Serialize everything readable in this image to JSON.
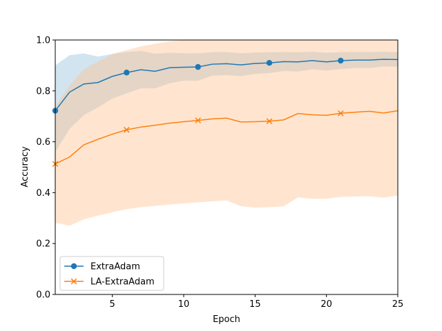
{
  "chart_data": {
    "type": "line",
    "xlabel": "Epoch",
    "ylabel": "Accuracy",
    "xlim": [
      1,
      25
    ],
    "ylim": [
      0.0,
      1.0
    ],
    "xticks": [
      5,
      10,
      15,
      20,
      25
    ],
    "yticks": [
      0.0,
      0.2,
      0.4,
      0.6,
      0.8,
      1.0
    ],
    "xtick_labels": [
      "5",
      "10",
      "15",
      "20",
      "25"
    ],
    "ytick_labels": [
      "0.0",
      "0.2",
      "0.4",
      "0.6",
      "0.8",
      "1.0"
    ],
    "grid": false,
    "legend_position": "lower-left",
    "x": [
      1,
      2,
      3,
      4,
      5,
      6,
      7,
      8,
      9,
      10,
      11,
      12,
      13,
      14,
      15,
      16,
      17,
      18,
      19,
      20,
      21,
      22,
      23,
      24,
      25
    ],
    "series": [
      {
        "name": "ExtraAdam",
        "color": "#1f77b4",
        "band_color": "#1f77b4",
        "marker": "circle",
        "marker_every": [
          1,
          6,
          11,
          16,
          21
        ],
        "values": [
          0.722,
          0.795,
          0.827,
          0.833,
          0.857,
          0.872,
          0.883,
          0.877,
          0.891,
          0.893,
          0.894,
          0.905,
          0.907,
          0.902,
          0.908,
          0.91,
          0.915,
          0.914,
          0.919,
          0.914,
          0.919,
          0.921,
          0.921,
          0.924,
          0.923
        ],
        "upper": [
          0.9,
          0.94,
          0.947,
          0.935,
          0.945,
          0.953,
          0.957,
          0.946,
          0.95,
          0.948,
          0.948,
          0.952,
          0.953,
          0.948,
          0.951,
          0.952,
          0.953,
          0.952,
          0.954,
          0.95,
          0.952,
          0.953,
          0.953,
          0.954,
          0.952
        ],
        "lower": [
          0.56,
          0.65,
          0.705,
          0.735,
          0.77,
          0.79,
          0.81,
          0.81,
          0.83,
          0.84,
          0.84,
          0.86,
          0.862,
          0.858,
          0.867,
          0.87,
          0.878,
          0.876,
          0.885,
          0.88,
          0.886,
          0.89,
          0.89,
          0.896,
          0.895
        ]
      },
      {
        "name": "LA-ExtraAdam",
        "color": "#ff7f0e",
        "band_color": "#ffbe86",
        "marker": "x",
        "marker_every": [
          1,
          6,
          11,
          16,
          21
        ],
        "values": [
          0.513,
          0.54,
          0.588,
          0.61,
          0.63,
          0.647,
          0.658,
          0.665,
          0.673,
          0.679,
          0.684,
          0.69,
          0.693,
          0.678,
          0.679,
          0.681,
          0.686,
          0.711,
          0.706,
          0.704,
          0.712,
          0.716,
          0.72,
          0.713,
          0.722
        ],
        "upper": [
          0.74,
          0.82,
          0.885,
          0.915,
          0.945,
          0.96,
          0.975,
          0.985,
          0.995,
          1.0,
          1.0,
          1.0,
          1.0,
          1.0,
          1.0,
          1.0,
          1.0,
          1.0,
          1.0,
          1.0,
          1.0,
          1.0,
          1.0,
          1.0,
          1.0
        ],
        "lower": [
          0.282,
          0.27,
          0.295,
          0.31,
          0.323,
          0.335,
          0.343,
          0.348,
          0.353,
          0.358,
          0.362,
          0.366,
          0.37,
          0.347,
          0.341,
          0.343,
          0.346,
          0.381,
          0.376,
          0.376,
          0.383,
          0.385,
          0.386,
          0.38,
          0.389
        ]
      }
    ]
  }
}
